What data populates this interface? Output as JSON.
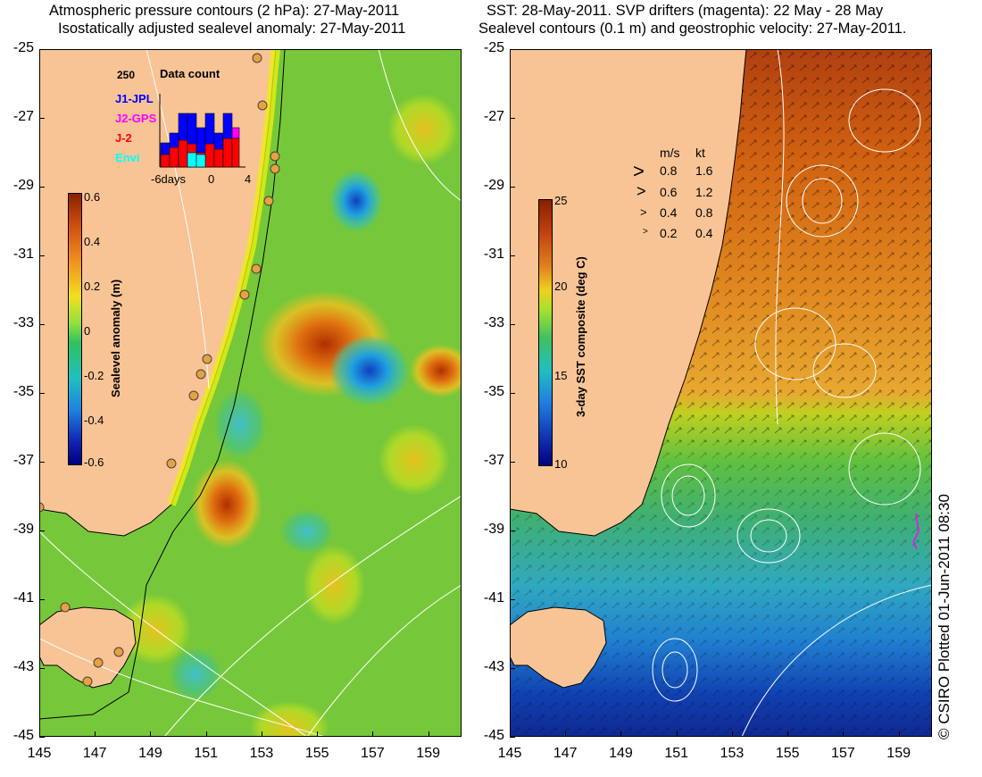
{
  "left_panel": {
    "title_line1": "Atmospheric pressure contours (2 hPa): 27-May-2011",
    "title_line2": "Isostatically adjusted sealevel anomaly: 27-May-2011",
    "colorbar": {
      "label": "Sealevel anomaly (m)",
      "ticks": [
        "0.6",
        "0.4",
        "0.2",
        "0",
        "-0.2",
        "-0.4",
        "-0.6"
      ]
    },
    "data_count": {
      "title": "Data count",
      "max_label": "250",
      "x_labels": [
        "-6days",
        "0",
        "4"
      ],
      "legend": [
        {
          "name": "J1-JPL",
          "color": "#0000ff"
        },
        {
          "name": "J2-GPS",
          "color": "#ff00ff"
        },
        {
          "name": "J-2",
          "color": "#ff0000"
        },
        {
          "name": "Envi",
          "color": "#00ffff"
        }
      ]
    }
  },
  "right_panel": {
    "title_line1": "SST: 28-May-2011. SVP drifters (magenta): 22 May - 28 May",
    "title_line2": "Sealevel contours (0.1 m) and geostrophic velocity: 27-May-2011.",
    "colorbar": {
      "label": "3-day SST composite (deg C)",
      "ticks": [
        "25",
        "20",
        "15",
        "10"
      ]
    },
    "velocity_legend": {
      "header_ms": "m/s",
      "header_kt": "kt",
      "rows": [
        {
          "ms": "0.8",
          "kt": "1.6"
        },
        {
          "ms": "0.6",
          "kt": "1.2"
        },
        {
          "ms": "0.4",
          "kt": "0.8"
        },
        {
          "ms": "0.2",
          "kt": "0.4"
        }
      ]
    }
  },
  "axes": {
    "lat_ticks": [
      "-25",
      "-27",
      "-29",
      "-31",
      "-33",
      "-35",
      "-37",
      "-39",
      "-41",
      "-43",
      "-45"
    ],
    "lon_ticks": [
      "145",
      "147",
      "149",
      "151",
      "153",
      "155",
      "157",
      "159"
    ]
  },
  "colors": {
    "land": "#f8c496",
    "coast_line": "#000000",
    "tide_gauge": "#e8a040"
  },
  "copyright": "© CSIRO Plotted 01-Jun-2011 08:30"
}
